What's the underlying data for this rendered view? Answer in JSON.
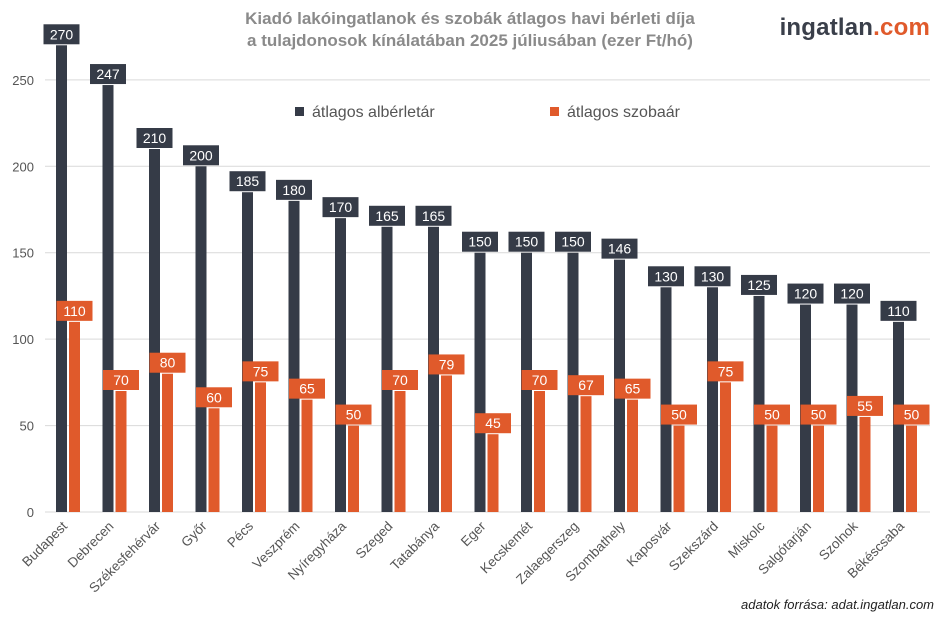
{
  "title_line1": "Kiadó lakóingatlanok és szobák átlagos havi bérleti díja",
  "title_line2": "a tulajdonosok kínálatában 2025 júliusában (ezer Ft/hó)",
  "logo": {
    "part1": "ingatlan",
    "part2": ".com"
  },
  "source": "adatok forrása: adat.ingatlan.com",
  "colors": {
    "dark": "#353b47",
    "orange": "#e05a2b",
    "grid": "#d9d9d9",
    "axis_text": "#555555"
  },
  "chart_data": {
    "type": "bar",
    "title": "Kiadó lakóingatlanok és szobák átlagos havi bérleti díja a tulajdonosok kínálatában 2025 júliusában (ezer Ft/hó)",
    "categories": [
      "Budapest",
      "Debrecen",
      "Székesfehérvár",
      "Győr",
      "Pécs",
      "Veszprém",
      "Nyíregyháza",
      "Szeged",
      "Tatabánya",
      "Eger",
      "Kecskemét",
      "Zalaegerszeg",
      "Szombathely",
      "Kaposvár",
      "Szekszárd",
      "Miskolc",
      "Salgótarján",
      "Szolnok",
      "Békéscsaba"
    ],
    "series": [
      {
        "name": "átlagos albérletár",
        "color": "#353b47",
        "values": [
          270,
          247,
          210,
          200,
          185,
          180,
          170,
          165,
          165,
          150,
          150,
          150,
          146,
          130,
          130,
          125,
          120,
          120,
          110
        ]
      },
      {
        "name": "átlagos szobaár",
        "color": "#e05a2b",
        "values": [
          110,
          70,
          80,
          60,
          75,
          65,
          50,
          70,
          79,
          45,
          70,
          67,
          65,
          50,
          75,
          50,
          50,
          55,
          50
        ]
      }
    ],
    "ylim": [
      0,
      280
    ],
    "yticks": [
      0,
      50,
      100,
      150,
      200,
      250
    ],
    "grid": true,
    "legend_position": "top-left inside plot"
  }
}
